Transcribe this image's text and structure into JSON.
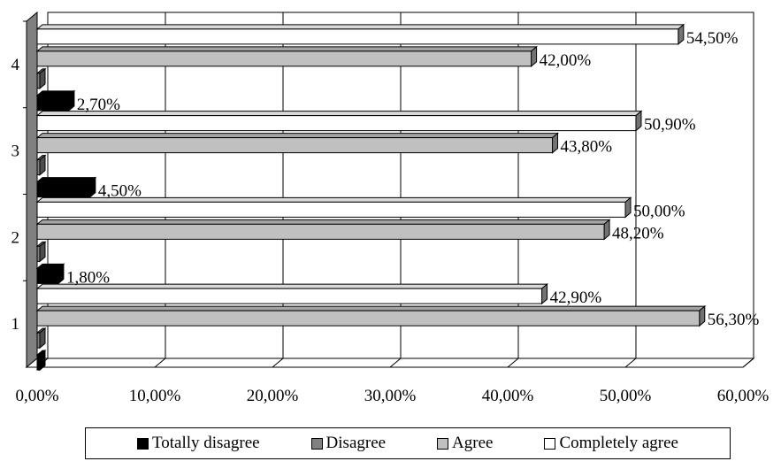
{
  "chart_data": {
    "type": "bar",
    "orientation": "horizontal",
    "three_d": true,
    "categories": [
      "1",
      "2",
      "3",
      "4"
    ],
    "series": [
      {
        "name": "Totally disagree",
        "color": "#000000",
        "values": [
          0,
          1.8,
          4.5,
          2.7
        ],
        "labels": [
          "",
          "1,80%",
          "4,50%",
          "2,70%"
        ]
      },
      {
        "name": "Disagree",
        "color": "#808080",
        "values": [
          0,
          0,
          0,
          0
        ],
        "labels": [
          "",
          "",
          "",
          ""
        ]
      },
      {
        "name": "Agree",
        "color": "#c0c0c0",
        "values": [
          56.3,
          48.2,
          43.8,
          42.0
        ],
        "labels": [
          "56,30%",
          "48,20%",
          "43,80%",
          "42,00%"
        ]
      },
      {
        "name": "Completely agree",
        "color": "#ffffff",
        "values": [
          42.9,
          50.0,
          50.9,
          54.5
        ],
        "labels": [
          "42,90%",
          "50,00%",
          "50,90%",
          "54,50%"
        ]
      }
    ],
    "xlim": [
      0,
      60
    ],
    "x_ticks": [
      "0,00%",
      "10,00%",
      "20,00%",
      "30,00%",
      "40,00%",
      "50,00%",
      "60,00%"
    ],
    "grid": true,
    "legend_position": "bottom"
  }
}
